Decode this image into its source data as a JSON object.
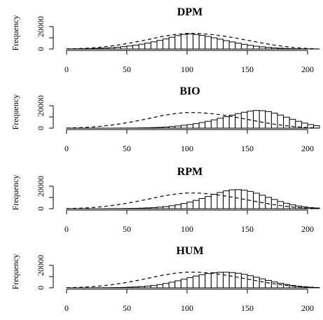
{
  "chart_data": [
    {
      "type": "bar",
      "title": "DPM",
      "ylabel": "Frequency",
      "xlabel": "",
      "xlim": [
        0,
        210
      ],
      "ylim": [
        0,
        20000
      ],
      "x_ticks": [
        "0",
        "50",
        "100",
        "150",
        "200"
      ],
      "y_ticks": [
        "0",
        "20000"
      ],
      "bin_width": 5,
      "bins": [
        [
          0,
          100
        ],
        [
          5,
          150
        ],
        [
          10,
          200
        ],
        [
          15,
          300
        ],
        [
          20,
          450
        ],
        [
          25,
          650
        ],
        [
          30,
          900
        ],
        [
          35,
          1200
        ],
        [
          40,
          1600
        ],
        [
          45,
          2100
        ],
        [
          50,
          2700
        ],
        [
          55,
          3400
        ],
        [
          60,
          4300
        ],
        [
          65,
          5300
        ],
        [
          70,
          6400
        ],
        [
          75,
          7700
        ],
        [
          80,
          9000
        ],
        [
          85,
          10500
        ],
        [
          90,
          12000
        ],
        [
          95,
          13000
        ],
        [
          100,
          13500
        ],
        [
          105,
          13000
        ],
        [
          110,
          12200
        ],
        [
          115,
          11200
        ],
        [
          120,
          10000
        ],
        [
          125,
          8800
        ],
        [
          130,
          7500
        ],
        [
          135,
          6300
        ],
        [
          140,
          5200
        ],
        [
          145,
          4200
        ],
        [
          150,
          3300
        ],
        [
          155,
          2500
        ],
        [
          160,
          1900
        ],
        [
          165,
          1400
        ],
        [
          170,
          1000
        ],
        [
          175,
          700
        ],
        [
          180,
          450
        ],
        [
          185,
          300
        ],
        [
          190,
          180
        ],
        [
          195,
          100
        ],
        [
          200,
          60
        ],
        [
          205,
          30
        ]
      ],
      "reference_curve": [
        [
          0,
          80
        ],
        [
          10,
          350
        ],
        [
          20,
          900
        ],
        [
          30,
          1800
        ],
        [
          40,
          3100
        ],
        [
          50,
          4800
        ],
        [
          60,
          6800
        ],
        [
          70,
          9000
        ],
        [
          80,
          11300
        ],
        [
          90,
          13000
        ],
        [
          100,
          14000
        ],
        [
          110,
          13900
        ],
        [
          120,
          13000
        ],
        [
          130,
          11600
        ],
        [
          140,
          9800
        ],
        [
          150,
          7800
        ],
        [
          160,
          5800
        ],
        [
          170,
          3900
        ],
        [
          180,
          2400
        ],
        [
          190,
          1200
        ],
        [
          200,
          500
        ],
        [
          208,
          200
        ]
      ]
    },
    {
      "type": "bar",
      "title": "BIO",
      "ylabel": "Frequency",
      "xlabel": "",
      "xlim": [
        0,
        210
      ],
      "ylim": [
        0,
        20000
      ],
      "x_ticks": [
        "0",
        "50",
        "100",
        "150",
        "200"
      ],
      "y_ticks": [
        "0",
        "20000"
      ],
      "bin_width": 5,
      "bins": [
        [
          0,
          0
        ],
        [
          5,
          0
        ],
        [
          10,
          0
        ],
        [
          15,
          0
        ],
        [
          20,
          0
        ],
        [
          25,
          0
        ],
        [
          30,
          0
        ],
        [
          35,
          0
        ],
        [
          40,
          50
        ],
        [
          45,
          80
        ],
        [
          50,
          100
        ],
        [
          55,
          150
        ],
        [
          60,
          250
        ],
        [
          65,
          350
        ],
        [
          70,
          500
        ],
        [
          75,
          700
        ],
        [
          80,
          1000
        ],
        [
          85,
          1400
        ],
        [
          90,
          1900
        ],
        [
          95,
          2500
        ],
        [
          100,
          3200
        ],
        [
          105,
          4000
        ],
        [
          110,
          5000
        ],
        [
          115,
          6100
        ],
        [
          120,
          7400
        ],
        [
          125,
          8800
        ],
        [
          130,
          10200
        ],
        [
          135,
          11600
        ],
        [
          140,
          13000
        ],
        [
          145,
          14200
        ],
        [
          150,
          15200
        ],
        [
          155,
          15800
        ],
        [
          160,
          15600
        ],
        [
          165,
          14800
        ],
        [
          170,
          13400
        ],
        [
          175,
          11700
        ],
        [
          180,
          9800
        ],
        [
          185,
          7900
        ],
        [
          190,
          6100
        ],
        [
          195,
          4500
        ],
        [
          200,
          3200
        ],
        [
          205,
          2200
        ]
      ],
      "reference_curve": [
        [
          0,
          80
        ],
        [
          10,
          350
        ],
        [
          20,
          900
        ],
        [
          30,
          1800
        ],
        [
          40,
          3100
        ],
        [
          50,
          4800
        ],
        [
          60,
          6800
        ],
        [
          70,
          9000
        ],
        [
          80,
          11300
        ],
        [
          90,
          13000
        ],
        [
          100,
          14000
        ],
        [
          110,
          13900
        ],
        [
          120,
          13000
        ],
        [
          130,
          11600
        ],
        [
          140,
          9800
        ],
        [
          150,
          7800
        ],
        [
          160,
          5800
        ],
        [
          170,
          3900
        ],
        [
          180,
          2400
        ],
        [
          190,
          1200
        ],
        [
          200,
          500
        ],
        [
          208,
          200
        ]
      ]
    },
    {
      "type": "bar",
      "title": "RPM",
      "ylabel": "Frequency",
      "xlabel": "",
      "xlim": [
        0,
        210
      ],
      "ylim": [
        0,
        20000
      ],
      "x_ticks": [
        "0",
        "50",
        "100",
        "150",
        "200"
      ],
      "y_ticks": [
        "0",
        "20000"
      ],
      "bin_width": 5,
      "bins": [
        [
          0,
          0
        ],
        [
          5,
          0
        ],
        [
          10,
          0
        ],
        [
          15,
          0
        ],
        [
          20,
          0
        ],
        [
          25,
          0
        ],
        [
          30,
          50
        ],
        [
          35,
          80
        ],
        [
          40,
          120
        ],
        [
          45,
          180
        ],
        [
          50,
          250
        ],
        [
          55,
          350
        ],
        [
          60,
          500
        ],
        [
          65,
          700
        ],
        [
          70,
          1000
        ],
        [
          75,
          1400
        ],
        [
          80,
          1900
        ],
        [
          85,
          2600
        ],
        [
          90,
          3500
        ],
        [
          95,
          4600
        ],
        [
          100,
          5900
        ],
        [
          105,
          7400
        ],
        [
          110,
          9100
        ],
        [
          115,
          10900
        ],
        [
          120,
          12800
        ],
        [
          125,
          14500
        ],
        [
          130,
          15900
        ],
        [
          135,
          16800
        ],
        [
          140,
          17000
        ],
        [
          145,
          16500
        ],
        [
          150,
          15400
        ],
        [
          155,
          13800
        ],
        [
          160,
          12000
        ],
        [
          165,
          10100
        ],
        [
          170,
          8200
        ],
        [
          175,
          6400
        ],
        [
          180,
          4800
        ],
        [
          185,
          3500
        ],
        [
          190,
          2400
        ],
        [
          195,
          1600
        ],
        [
          200,
          1000
        ],
        [
          205,
          600
        ]
      ],
      "reference_curve": [
        [
          0,
          80
        ],
        [
          10,
          350
        ],
        [
          20,
          900
        ],
        [
          30,
          1800
        ],
        [
          40,
          3100
        ],
        [
          50,
          4800
        ],
        [
          60,
          6800
        ],
        [
          70,
          9000
        ],
        [
          80,
          11300
        ],
        [
          90,
          13000
        ],
        [
          100,
          14000
        ],
        [
          110,
          13900
        ],
        [
          120,
          13000
        ],
        [
          130,
          11600
        ],
        [
          140,
          9800
        ],
        [
          150,
          7800
        ],
        [
          160,
          5800
        ],
        [
          170,
          3900
        ],
        [
          180,
          2400
        ],
        [
          190,
          1200
        ],
        [
          200,
          500
        ],
        [
          208,
          200
        ]
      ]
    },
    {
      "type": "bar",
      "title": "HUM",
      "ylabel": "Frequency",
      "xlabel": "",
      "xlim": [
        0,
        210
      ],
      "ylim": [
        0,
        20000
      ],
      "x_ticks": [
        "0",
        "50",
        "100",
        "150",
        "200"
      ],
      "y_ticks": [
        "0",
        "20000"
      ],
      "bin_width": 5,
      "bins": [
        [
          0,
          0
        ],
        [
          5,
          0
        ],
        [
          10,
          0
        ],
        [
          15,
          0
        ],
        [
          20,
          50
        ],
        [
          25,
          80
        ],
        [
          30,
          120
        ],
        [
          35,
          180
        ],
        [
          40,
          260
        ],
        [
          45,
          380
        ],
        [
          50,
          550
        ],
        [
          55,
          800
        ],
        [
          60,
          1100
        ],
        [
          65,
          1500
        ],
        [
          70,
          2100
        ],
        [
          75,
          2900
        ],
        [
          80,
          3900
        ],
        [
          85,
          5000
        ],
        [
          90,
          6300
        ],
        [
          95,
          7700
        ],
        [
          100,
          9100
        ],
        [
          105,
          10500
        ],
        [
          110,
          11700
        ],
        [
          115,
          12700
        ],
        [
          120,
          13400
        ],
        [
          125,
          13800
        ],
        [
          130,
          13900
        ],
        [
          135,
          13600
        ],
        [
          140,
          13000
        ],
        [
          145,
          12000
        ],
        [
          150,
          10800
        ],
        [
          155,
          9400
        ],
        [
          160,
          8000
        ],
        [
          165,
          6600
        ],
        [
          170,
          5200
        ],
        [
          175,
          4000
        ],
        [
          180,
          3000
        ],
        [
          185,
          2100
        ],
        [
          190,
          1400
        ],
        [
          195,
          900
        ],
        [
          200,
          550
        ],
        [
          205,
          300
        ]
      ],
      "reference_curve": [
        [
          0,
          80
        ],
        [
          10,
          350
        ],
        [
          20,
          900
        ],
        [
          30,
          1800
        ],
        [
          40,
          3100
        ],
        [
          50,
          4800
        ],
        [
          60,
          6800
        ],
        [
          70,
          9000
        ],
        [
          80,
          11300
        ],
        [
          90,
          13000
        ],
        [
          100,
          14000
        ],
        [
          110,
          13900
        ],
        [
          120,
          13000
        ],
        [
          130,
          11600
        ],
        [
          140,
          9800
        ],
        [
          150,
          7800
        ],
        [
          160,
          5800
        ],
        [
          170,
          3900
        ],
        [
          180,
          2400
        ],
        [
          190,
          1200
        ],
        [
          200,
          500
        ],
        [
          208,
          200
        ]
      ]
    }
  ]
}
